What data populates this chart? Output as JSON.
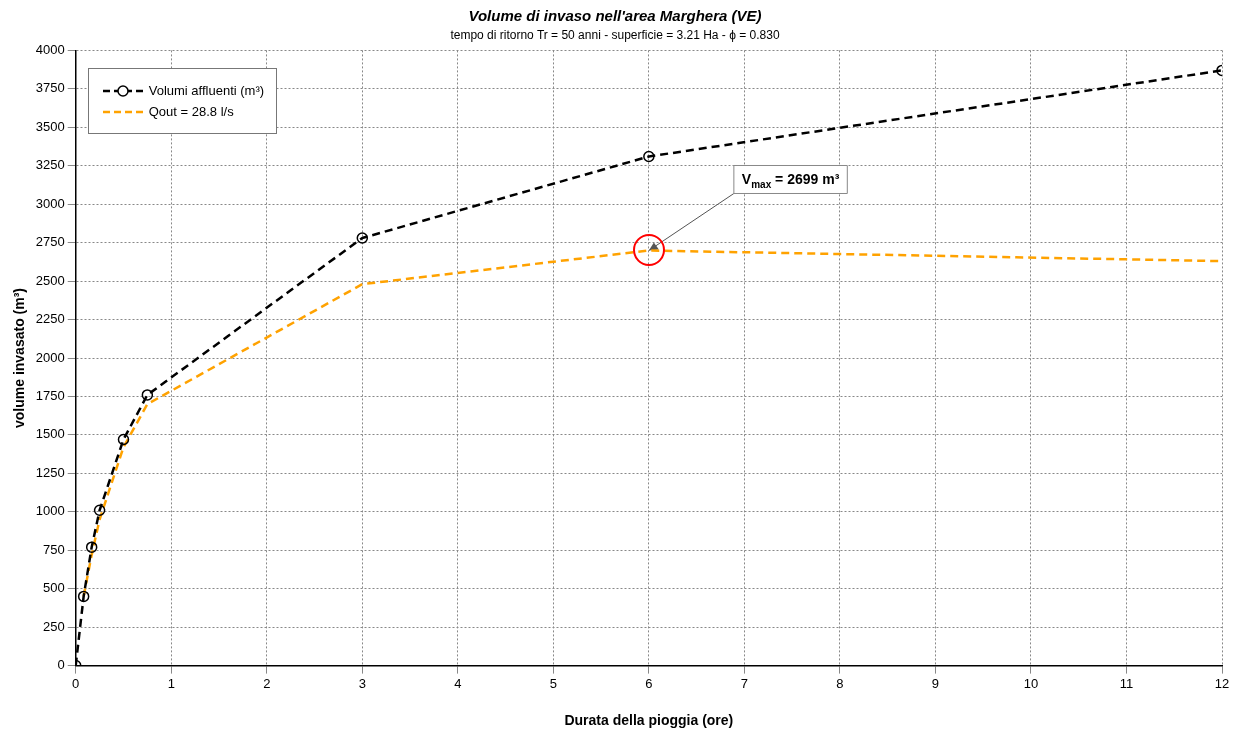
{
  "chart_data": {
    "type": "line",
    "title": "Volume di invaso nell'area Marghera (VE)",
    "subtitle": "tempo di ritorno Tr = 50 anni - superficie = 3.21 Ha - ϕ = 0.830",
    "xlabel": "Durata della pioggia (ore)",
    "ylabel": "volume invasato (m³)",
    "xlim": [
      0,
      12
    ],
    "xticks": [
      0,
      1,
      2,
      3,
      4,
      5,
      6,
      7,
      8,
      9,
      10,
      11,
      12
    ],
    "ylim": [
      0,
      4000
    ],
    "yticks": [
      0,
      250,
      500,
      750,
      1000,
      1250,
      1500,
      1750,
      2000,
      2250,
      2500,
      2750,
      3000,
      3250,
      3500,
      3750,
      4000
    ],
    "grid": true,
    "legend": "top left",
    "series": [
      {
        "name": "Volumi affluenti (m³)",
        "color": "#000000",
        "marker": "circle",
        "line_style": "dashed",
        "x": [
          0,
          0.083,
          0.167,
          0.25,
          0.5,
          0.75,
          3,
          6,
          12
        ],
        "values": [
          0,
          450,
          770,
          1010,
          1470,
          1760,
          2780,
          3310,
          3870
        ]
      },
      {
        "name": "Qout = 28.8 l/s",
        "color": "#ffa200",
        "marker": "none",
        "line_style": "dashed",
        "x": [
          0.083,
          0.167,
          0.25,
          0.5,
          0.75,
          3,
          6,
          12
        ],
        "values": [
          450,
          720,
          950,
          1420,
          1700,
          2480,
          2699,
          2630
        ]
      }
    ],
    "annotations": [
      {
        "text": "V$_{max}$ = 2699 m³",
        "x": 6,
        "y": 2699
      }
    ]
  }
}
